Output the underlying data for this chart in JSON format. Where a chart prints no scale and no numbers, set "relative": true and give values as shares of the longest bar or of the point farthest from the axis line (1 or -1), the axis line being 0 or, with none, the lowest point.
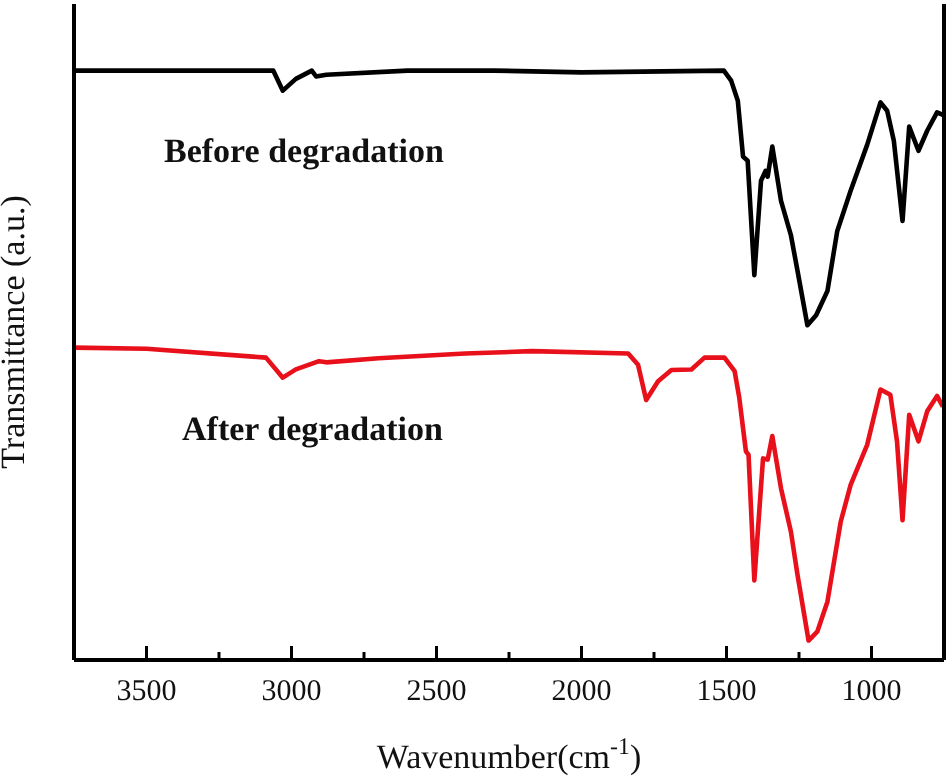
{
  "chart_data": {
    "type": "line",
    "relative": true,
    "xlabel": "Wavenumber(cm$^{-1}$)",
    "ylabel": "Transmittance (a.u.)",
    "xlim": [
      3750,
      750
    ],
    "xticks": [
      3500,
      {
        "value": 3250,
        "label": null
      },
      3000,
      {
        "value": 2750,
        "label": null
      },
      2500,
      {
        "value": 2250,
        "label": null
      },
      2000,
      {
        "value": 1750,
        "label": null
      },
      1500,
      {
        "value": 1250,
        "label": null
      },
      1000
    ],
    "marker": "none",
    "line_style": "solid",
    "series": [
      {
        "name": "Before degradation",
        "color": "#000000",
        "x": [
          3750,
          3063,
          3030,
          2985,
          2930,
          2915,
          2880,
          2600,
          2300,
          2000,
          1509,
          1484,
          1461,
          1443,
          1427,
          1404,
          1381,
          1365,
          1358,
          1342,
          1312,
          1278,
          1255,
          1221,
          1191,
          1152,
          1118,
          1072,
          1015,
          969,
          946,
          923,
          893,
          870,
          838,
          808,
          774,
          754
        ],
        "values": [
          1.0,
          1.0,
          0.966,
          0.986,
          1.0,
          0.99,
          0.993,
          1.0,
          1.0,
          0.997,
          1.0,
          0.983,
          0.949,
          0.854,
          0.847,
          0.653,
          0.813,
          0.83,
          0.82,
          0.871,
          0.779,
          0.721,
          0.66,
          0.568,
          0.585,
          0.626,
          0.728,
          0.796,
          0.874,
          0.946,
          0.932,
          0.881,
          0.745,
          0.905,
          0.864,
          0.898,
          0.929,
          0.925
        ]
      },
      {
        "name": "After degradation",
        "color": "#e8101a",
        "x": [
          3750,
          3500,
          3088,
          3030,
          2985,
          2905,
          2880,
          2700,
          2401,
          2171,
          1839,
          1805,
          1777,
          1736,
          1690,
          1621,
          1576,
          1507,
          1472,
          1456,
          1433,
          1424,
          1404,
          1374,
          1358,
          1342,
          1312,
          1278,
          1255,
          1217,
          1187,
          1152,
          1106,
          1072,
          1015,
          969,
          935,
          912,
          893,
          870,
          838,
          808,
          774,
          754
        ],
        "values": [
          0.53,
          0.528,
          0.513,
          0.479,
          0.493,
          0.507,
          0.505,
          0.512,
          0.52,
          0.524,
          0.52,
          0.501,
          0.441,
          0.473,
          0.492,
          0.493,
          0.513,
          0.513,
          0.49,
          0.445,
          0.354,
          0.348,
          0.135,
          0.342,
          0.34,
          0.38,
          0.291,
          0.218,
          0.144,
          0.033,
          0.048,
          0.099,
          0.235,
          0.297,
          0.365,
          0.459,
          0.45,
          0.371,
          0.237,
          0.416,
          0.371,
          0.422,
          0.448,
          0.43
        ]
      }
    ]
  }
}
